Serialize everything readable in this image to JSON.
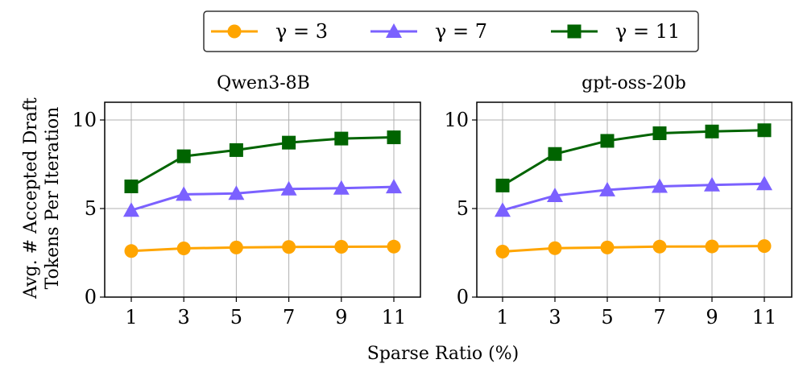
{
  "figure": {
    "xlabel": "Sparse Ratio (%)",
    "ylabel_line1": "Avg. # Accepted Draft",
    "ylabel_line2": "Tokens Per Iteration"
  },
  "legend": {
    "placement": "top-center",
    "entries": [
      {
        "label": "γ = 3",
        "color": "#FFA500",
        "marker": "circle"
      },
      {
        "label": "γ = 7",
        "color": "#7B61FF",
        "marker": "triangle"
      },
      {
        "label": "γ = 11",
        "color": "#006400",
        "marker": "square"
      }
    ]
  },
  "chart_data": [
    {
      "type": "line",
      "title": "Qwen3-8B",
      "xlabel": "Sparse Ratio (%)",
      "ylabel": "Avg. # Accepted Draft Tokens Per Iteration",
      "x": [
        1,
        3,
        5,
        7,
        9,
        11
      ],
      "ylim": [
        0,
        11
      ],
      "yticks": [
        0,
        5,
        10
      ],
      "grid": true,
      "series": [
        {
          "name": "γ = 3",
          "color": "#FFA500",
          "marker": "circle",
          "values": [
            2.6,
            2.75,
            2.8,
            2.83,
            2.84,
            2.85
          ]
        },
        {
          "name": "γ = 7",
          "color": "#7B61FF",
          "marker": "triangle",
          "values": [
            4.9,
            5.8,
            5.85,
            6.1,
            6.15,
            6.22
          ]
        },
        {
          "name": "γ = 11",
          "color": "#006400",
          "marker": "square",
          "values": [
            6.25,
            7.95,
            8.3,
            8.72,
            8.95,
            9.02
          ]
        }
      ]
    },
    {
      "type": "line",
      "title": "gpt-oss-20b",
      "xlabel": "Sparse Ratio (%)",
      "ylabel": "",
      "x": [
        1,
        3,
        5,
        7,
        9,
        11
      ],
      "ylim": [
        0,
        11
      ],
      "yticks": [
        0,
        5,
        10
      ],
      "grid": true,
      "series": [
        {
          "name": "γ = 3",
          "color": "#FFA500",
          "marker": "circle",
          "values": [
            2.57,
            2.76,
            2.8,
            2.85,
            2.86,
            2.88
          ]
        },
        {
          "name": "γ = 7",
          "color": "#7B61FF",
          "marker": "triangle",
          "values": [
            4.9,
            5.73,
            6.05,
            6.25,
            6.33,
            6.4
          ]
        },
        {
          "name": "γ = 11",
          "color": "#006400",
          "marker": "square",
          "values": [
            6.3,
            8.08,
            8.82,
            9.25,
            9.35,
            9.42
          ]
        }
      ]
    }
  ]
}
